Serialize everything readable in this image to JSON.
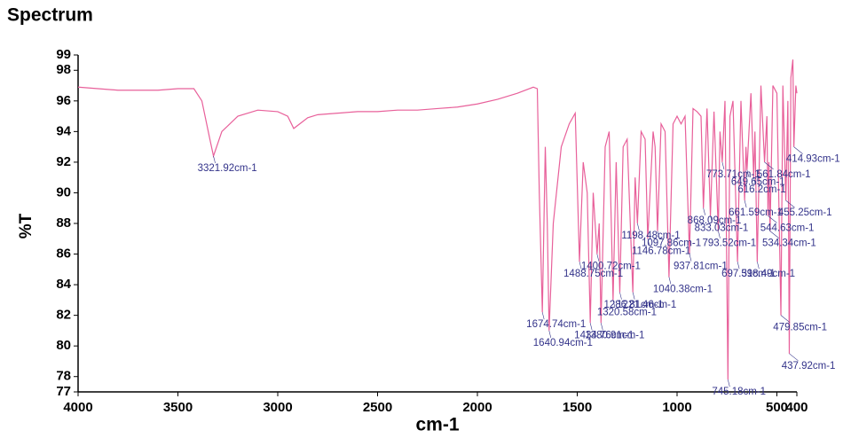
{
  "chart_data": {
    "type": "line",
    "title": "Spectrum",
    "x_label": "cm-1",
    "y_label": "%T",
    "xlim": [
      4000,
      400
    ],
    "ylim": [
      77,
      99
    ],
    "xticks": [
      4000,
      3500,
      3000,
      2500,
      2000,
      1500,
      1000,
      500,
      400
    ],
    "yticks": [
      77,
      78,
      80,
      82,
      84,
      86,
      88,
      90,
      92,
      94,
      96,
      98,
      99
    ],
    "color": "#e8609a",
    "annotation_color": "#33338a",
    "x": [
      4000,
      3900,
      3800,
      3700,
      3600,
      3500,
      3420,
      3380,
      3340,
      3321.92,
      3280,
      3200,
      3100,
      3000,
      2950,
      2920,
      2880,
      2850,
      2800,
      2700,
      2600,
      2500,
      2400,
      2300,
      2200,
      2100,
      2000,
      1900,
      1800,
      1720,
      1700,
      1690,
      1674.74,
      1660,
      1650,
      1640.94,
      1620,
      1580,
      1540,
      1510,
      1488.75,
      1470,
      1450,
      1434.76,
      1420,
      1400.72,
      1390,
      1380.91,
      1360,
      1340,
      1320.58,
      1305,
      1286.81,
      1270,
      1250,
      1221.46,
      1210,
      1198.48,
      1180,
      1160,
      1146.78,
      1120,
      1110,
      1097.86,
      1080,
      1060,
      1040.38,
      1020,
      1000,
      980,
      960,
      937.81,
      920,
      900,
      880,
      868.09,
      850,
      833.03,
      815,
      793.52,
      785,
      773.71,
      760,
      745.18,
      735,
      720,
      697.31,
      680,
      661.59,
      655,
      649.65,
      630,
      616.2,
      610,
      598.49,
      580,
      561.84,
      550,
      544.63,
      540,
      534.34,
      520,
      500,
      479.85,
      470,
      455.25,
      445,
      437.92,
      430,
      420,
      414.93,
      405,
      400
    ],
    "values": [
      96.9,
      96.8,
      96.7,
      96.7,
      96.7,
      96.8,
      96.8,
      96,
      93.5,
      92.4,
      94,
      95,
      95.4,
      95.3,
      95,
      94.2,
      94.6,
      94.9,
      95.1,
      95.2,
      95.3,
      95.3,
      95.4,
      95.4,
      95.5,
      95.6,
      95.8,
      96.1,
      96.5,
      96.9,
      96.8,
      90,
      82.2,
      93,
      88,
      81,
      88,
      93,
      94.5,
      95.2,
      85.5,
      92,
      90,
      81.5,
      90,
      86,
      88,
      81.5,
      93,
      94,
      83,
      92,
      83.5,
      93,
      93.5,
      83.5,
      91,
      88,
      94,
      93.5,
      87,
      94,
      93,
      87.5,
      94.5,
      94,
      84.5,
      94.5,
      95,
      94.5,
      95,
      86,
      95.5,
      95.3,
      95,
      89,
      95.5,
      88.5,
      95.3,
      87.5,
      94,
      92,
      96,
      77.8,
      95,
      96,
      85.5,
      96,
      89.5,
      93,
      91.5,
      96.5,
      91,
      94,
      85.5,
      97,
      92,
      95,
      88.5,
      92,
      87.5,
      97,
      96.5,
      82,
      97,
      89.5,
      96,
      79.5,
      97.5,
      98.7,
      93,
      97,
      96.5
    ],
    "annotations": [
      {
        "x": 3321.92,
        "y": 92.4,
        "label": "3321.92cm-1"
      },
      {
        "x": 1674.74,
        "y": 82.2,
        "label": "1674.74cm-1"
      },
      {
        "x": 1640.94,
        "y": 81,
        "label": "1640.94cm-1"
      },
      {
        "x": 1488.75,
        "y": 85.5,
        "label": "1488.75cm-1"
      },
      {
        "x": 1434.76,
        "y": 81.5,
        "label": "1434.76cm-1"
      },
      {
        "x": 1400.72,
        "y": 86,
        "label": "1400.72cm-1"
      },
      {
        "x": 1380.91,
        "y": 81.5,
        "label": "1380.91cm-1"
      },
      {
        "x": 1320.58,
        "y": 83,
        "label": "1320.58cm-1"
      },
      {
        "x": 1286.81,
        "y": 83.5,
        "label": "1286.81cm-1"
      },
      {
        "x": 1221.46,
        "y": 83.5,
        "label": "1221.46cm-1"
      },
      {
        "x": 1198.48,
        "y": 88,
        "label": "1198.48cm-1"
      },
      {
        "x": 1146.78,
        "y": 87,
        "label": "1146.78cm-1"
      },
      {
        "x": 1097.86,
        "y": 87.5,
        "label": "1097.86cm-1"
      },
      {
        "x": 1040.38,
        "y": 84.5,
        "label": "1040.38cm-1"
      },
      {
        "x": 937.81,
        "y": 86,
        "label": "937.81cm-1"
      },
      {
        "x": 868.09,
        "y": 89,
        "label": "868.09cm-1"
      },
      {
        "x": 833.03,
        "y": 88.5,
        "label": "833.03cm-1"
      },
      {
        "x": 793.52,
        "y": 87.5,
        "label": "793.52cm-1"
      },
      {
        "x": 773.71,
        "y": 92,
        "label": "773.71cm-1"
      },
      {
        "x": 745.18,
        "y": 77.8,
        "label": "745.18cm-1"
      },
      {
        "x": 697.31,
        "y": 85.5,
        "label": "697.31cm-1"
      },
      {
        "x": 661.59,
        "y": 89.5,
        "label": "661.59cm-1"
      },
      {
        "x": 649.65,
        "y": 91.5,
        "label": "649.65cm-1"
      },
      {
        "x": 616.2,
        "y": 91,
        "label": "616.2cm-1"
      },
      {
        "x": 598.49,
        "y": 85.5,
        "label": "598.49cm-1"
      },
      {
        "x": 561.84,
        "y": 92,
        "label": "561.84cm-1"
      },
      {
        "x": 544.63,
        "y": 88.5,
        "label": "544.63cm-1"
      },
      {
        "x": 534.34,
        "y": 87.5,
        "label": "534.34cm-1"
      },
      {
        "x": 479.85,
        "y": 82,
        "label": "479.85cm-1"
      },
      {
        "x": 455.25,
        "y": 89.5,
        "label": "455.25cm-1"
      },
      {
        "x": 437.92,
        "y": 79.5,
        "label": "437.92cm-1"
      },
      {
        "x": 414.93,
        "y": 93,
        "label": "414.93cm-1"
      }
    ]
  }
}
